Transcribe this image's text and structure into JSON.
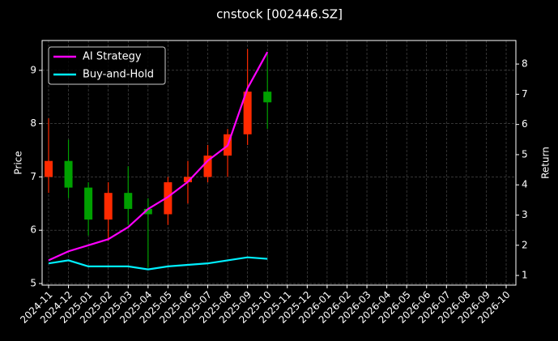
{
  "chart_data": {
    "type": "candlestick",
    "title": "cnstock [002446.SZ]",
    "ylabel": "Price",
    "y2label": "Return",
    "x": [
      "2024-11",
      "2024-12",
      "2025-01",
      "2025-02",
      "2025-03",
      "2025-04",
      "2025-05",
      "2025-06",
      "2025-07",
      "2025-08",
      "2025-09",
      "2025-10"
    ],
    "open": [
      7.0,
      7.3,
      6.8,
      6.2,
      6.7,
      6.4,
      6.3,
      6.9,
      7.0,
      7.4,
      7.8,
      8.6
    ],
    "high": [
      8.1,
      7.7,
      6.9,
      6.9,
      7.2,
      6.6,
      7.0,
      7.3,
      7.6,
      7.9,
      9.4,
      9.3
    ],
    "low": [
      6.7,
      6.6,
      5.9,
      5.8,
      6.1,
      5.3,
      6.1,
      6.5,
      6.9,
      7.0,
      7.6,
      7.9
    ],
    "close": [
      7.3,
      6.8,
      6.2,
      6.7,
      6.4,
      6.3,
      6.9,
      7.0,
      7.4,
      7.8,
      8.6,
      8.4
    ],
    "up_color": "#ff2a00",
    "down_color": "#00a000",
    "series": [
      {
        "name": "AI Strategy",
        "color": "#ff00ff",
        "axis": "y2",
        "values": [
          1.5,
          1.8,
          2.0,
          2.2,
          2.6,
          3.2,
          3.6,
          4.1,
          4.8,
          5.3,
          7.2,
          8.4
        ]
      },
      {
        "name": "Buy-and-Hold",
        "color": "#00f0ff",
        "axis": "y2",
        "values": [
          1.4,
          1.5,
          1.3,
          1.3,
          1.3,
          1.2,
          1.3,
          1.35,
          1.4,
          1.5,
          1.6,
          1.55
        ]
      }
    ],
    "xlim": [
      "2024-11",
      "2026-10"
    ],
    "xticks": [
      "2024-11",
      "2024-12",
      "2025-01",
      "2025-02",
      "2025-03",
      "2025-04",
      "2025-05",
      "2025-06",
      "2025-07",
      "2025-08",
      "2025-09",
      "2025-10",
      "2025-11",
      "2025-12",
      "2026-01",
      "2026-02",
      "2026-03",
      "2026-04",
      "2026-05",
      "2026-06",
      "2026-07",
      "2026-08",
      "2026-09",
      "2026-10"
    ],
    "ylim": [
      4.97,
      9.56
    ],
    "yticks": [
      5,
      6,
      7,
      8,
      9
    ],
    "y2lim": [
      0.68,
      8.78
    ],
    "y2ticks": [
      1,
      2,
      3,
      4,
      5,
      6,
      7,
      8
    ],
    "legend": "upper left",
    "grid": true
  }
}
